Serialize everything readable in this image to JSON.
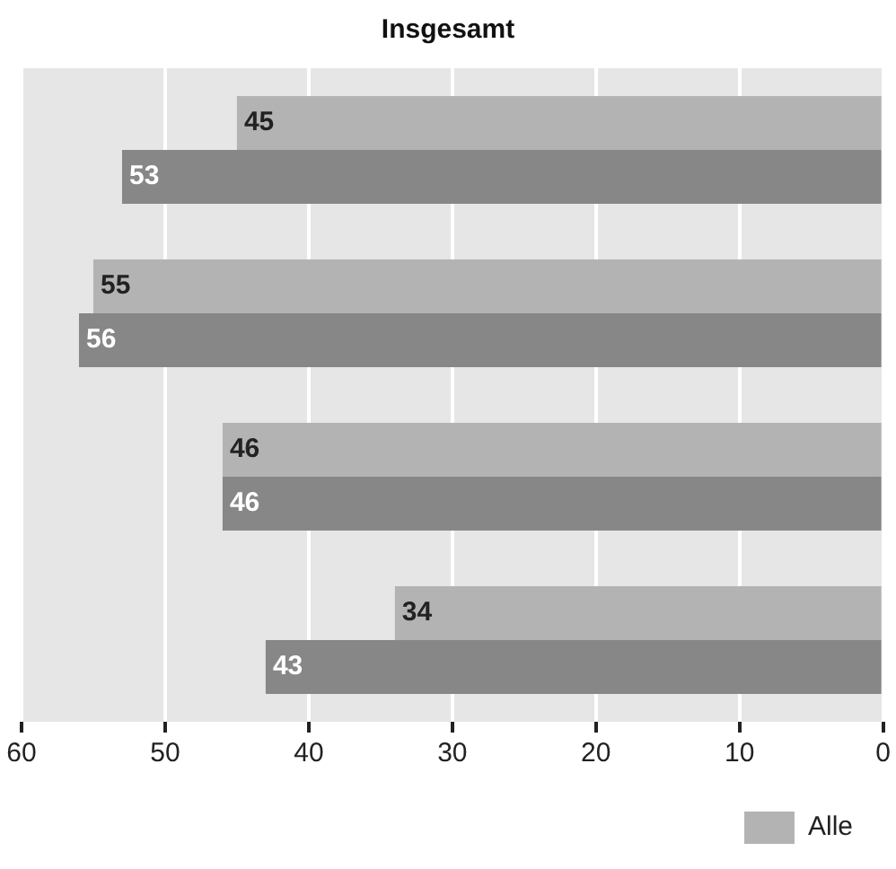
{
  "chart_data": {
    "type": "bar",
    "orientation": "horizontal",
    "title": "Insgesamt",
    "categories": [
      null,
      null,
      null,
      null
    ],
    "series": [
      {
        "name": "Alle",
        "color": "#b3b3b3",
        "values": [
          45,
          55,
          46,
          34
        ]
      },
      {
        "color": "#878787",
        "values": [
          53,
          56,
          46,
          43
        ]
      }
    ],
    "xlim": [
      60,
      0
    ],
    "xticks": [
      60,
      50,
      40,
      30,
      20,
      10,
      0
    ],
    "grid": "x",
    "legend": "bottom right",
    "tick_labels": "x",
    "data_labels": true
  }
}
